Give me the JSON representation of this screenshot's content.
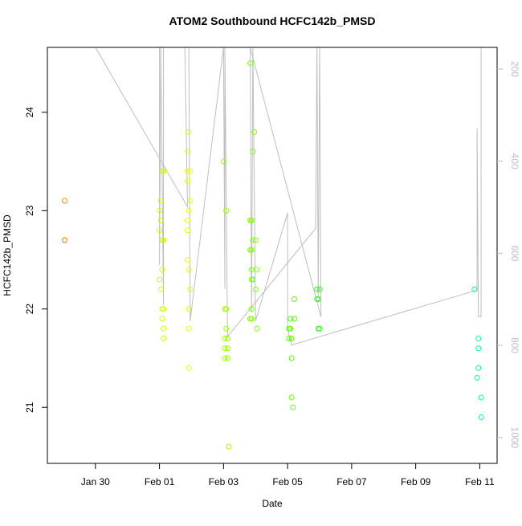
{
  "chart_data": {
    "type": "scatter",
    "title": "ATOM2 Southbound HCFC142b_PMSD",
    "x_label": "Date",
    "y_label": "HCFC142b_PMSD",
    "xlim": [
      "Jan 28 12:00",
      "Feb 11 13:00"
    ],
    "xticks": [
      "Jan 30",
      "Feb 01",
      "Feb 03",
      "Feb 05",
      "Feb 07",
      "Feb 09",
      "Feb 11"
    ],
    "ylim": [
      20.43,
      24.66
    ],
    "yticks": [
      21,
      22,
      23,
      24
    ],
    "y2lim": [
      1056,
      153
    ],
    "y2ticks": [
      200,
      400,
      600,
      800,
      1000
    ],
    "series": [
      {
        "color": "#f08a00",
        "x": [
          "Jan 29 01:00",
          "Jan 29 01:00",
          "Jan 29 01:00"
        ],
        "values": [
          23.1,
          22.7,
          22.7
        ]
      },
      {
        "color": "#ccff00",
        "x": [
          "Feb 01 02:00",
          "Feb 01 03:00",
          "Feb 01 01:00",
          "Feb 01 00:00",
          "Feb 01 01:00",
          "Feb 01 00:00",
          "Feb 01 02:00",
          "Feb 01 03:00",
          "Feb 01 02:00",
          "Feb 01 00:00",
          "Feb 01 01:00",
          "Feb 01 02:00",
          "Feb 01 03:00",
          "Feb 01 02:00",
          "Feb 01 03:00",
          "Feb 01 03:00"
        ],
        "values": [
          23.4,
          23.4,
          23.1,
          23.0,
          22.9,
          22.8,
          22.7,
          22.7,
          22.4,
          22.3,
          22.2,
          22.0,
          22.0,
          21.9,
          21.8,
          21.7
        ]
      },
      {
        "color": "#e6ff00",
        "x": [
          "Feb 01 22:00",
          "Feb 01 21:00",
          "Feb 01 21:00",
          "Feb 01 23:00",
          "Feb 01 21:00",
          "Feb 01 23:00",
          "Feb 01 22:00",
          "Feb 01 21:00",
          "Feb 01 21:00",
          "Feb 01 21:00",
          "Feb 01 22:00",
          "Feb 01 23:00",
          "Feb 01 22:00",
          "Feb 01 22:00",
          "Feb 01 22:00"
        ],
        "values": [
          23.8,
          23.6,
          23.4,
          23.4,
          23.3,
          23.1,
          23.0,
          22.9,
          22.8,
          22.5,
          22.4,
          22.2,
          22.0,
          21.8,
          21.4
        ]
      },
      {
        "color": "#99ff00",
        "x": [
          "Feb 03 00:00",
          "Feb 03 02:00",
          "Feb 03 01:00",
          "Feb 03 02:00",
          "Feb 03 02:00",
          "Feb 03 01:00",
          "Feb 03 03:00",
          "Feb 03 01:00",
          "Feb 03 03:00",
          "Feb 03 01:00",
          "Feb 03 03:00",
          "Feb 03 04:00"
        ],
        "values": [
          23.5,
          23.0,
          22.0,
          22.0,
          21.8,
          21.7,
          21.7,
          21.6,
          21.6,
          21.5,
          21.5,
          20.6
        ]
      },
      {
        "color": "#7fff00",
        "x": [
          "Feb 03 20:00",
          "Feb 03 23:00",
          "Feb 03 22:00",
          "Feb 03 20:00",
          "Feb 03 21:00",
          "Feb 03 22:00",
          "Feb 04 00:00",
          "Feb 03 20:00",
          "Feb 03 21:00",
          "Feb 03 21:00",
          "Feb 04 01:00",
          "Feb 03 21:00",
          "Feb 03 22:00",
          "Feb 04 00:00",
          "Feb 03 21:00",
          "Feb 03 20:00",
          "Feb 03 21:00",
          "Feb 04 01:00"
        ],
        "values": [
          24.5,
          23.8,
          23.6,
          22.9,
          22.9,
          22.7,
          22.7,
          22.6,
          22.6,
          22.4,
          22.4,
          22.3,
          22.3,
          22.2,
          22.0,
          21.9,
          21.9,
          21.8
        ]
      },
      {
        "color": "#55ff00",
        "x": [
          "Feb 05 05:00",
          "Feb 05 02:00",
          "Feb 05 05:00",
          "Feb 05 01:00",
          "Feb 05 02:00",
          "Feb 05 01:00",
          "Feb 05 03:00",
          "Feb 05 03:00",
          "Feb 05 03:00",
          "Feb 05 04:00"
        ],
        "values": [
          22.1,
          21.9,
          21.9,
          21.8,
          21.8,
          21.7,
          21.7,
          21.5,
          21.1,
          21.0
        ]
      },
      {
        "color": "#33ff22",
        "x": [
          "Feb 05 22:00",
          "Feb 06 00:00",
          "Feb 05 22:00",
          "Feb 05 23:00",
          "Feb 05 23:00",
          "Feb 06 00:00"
        ],
        "values": [
          22.2,
          22.2,
          22.1,
          22.1,
          21.8,
          21.8
        ]
      },
      {
        "color": "#00ff99",
        "x": [
          "Feb 10 20:00",
          "Feb 10 23:00",
          "Feb 10 23:00",
          "Feb 10 23:00",
          "Feb 10 22:00",
          "Feb 11 01:00",
          "Feb 11 01:00"
        ],
        "values": [
          22.2,
          21.7,
          21.6,
          21.4,
          21.3,
          21.1,
          20.9
        ]
      },
      {
        "type": "line",
        "axis": "y2",
        "color": "#bebebe",
        "x": [
          "Jan 30 00:00",
          "Feb 01 21:00",
          "Feb 01 19:00",
          "Feb 01 00:00",
          "Feb 01 00:00",
          "Feb 01 01:00",
          "Feb 01 03:00",
          "Feb 01 03:00",
          "Feb 01 22:00",
          "Feb 01 23:00",
          "Feb 03 00:00",
          "Feb 03 01:00",
          "Feb 03 01:00",
          "Feb 03 03:00",
          "Feb 05 21:00",
          "Feb 05 22:00",
          "Feb 05 23:00",
          "Feb 06 00:00",
          "Feb 06 01:00",
          "Feb 03 20:00",
          "Feb 03 21:00",
          "Feb 03 22:00",
          "Feb 04 00:00",
          "Feb 05 00:00",
          "Feb 05 00:00",
          "Feb 05 03:00",
          "Feb 10 22:00",
          "Feb 10 22:00",
          "Feb 10 23:00",
          "Feb 11 01:00",
          "Feb 11 01:00"
        ],
        "values": [
          153,
          499,
          153,
          153,
          625,
          153,
          712,
          153,
          153,
          747,
          153,
          677,
          153,
          781,
          546,
          153,
          694,
          153,
          738,
          153,
          729,
          153,
          747,
          512,
          764,
          799,
          680,
          329,
          738,
          738,
          153
        ]
      }
    ]
  }
}
